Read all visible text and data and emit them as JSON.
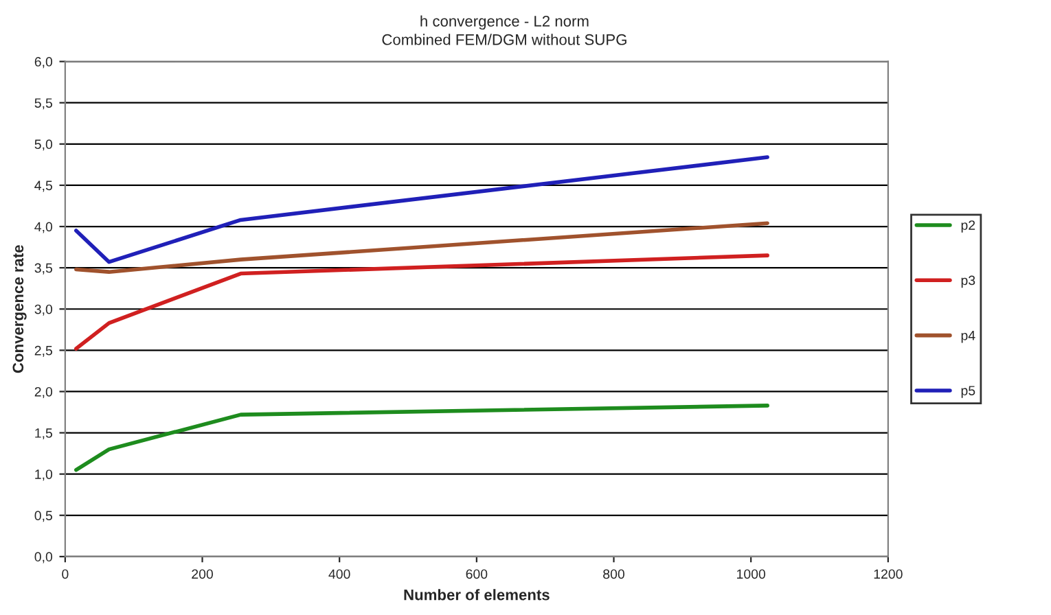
{
  "chart_data": {
    "type": "line",
    "title": "h convergence - L2 norm",
    "subtitle": "Combined FEM/DGM without SUPG",
    "xlabel": "Number of elements",
    "ylabel": "Convergence rate",
    "x": [
      16,
      64,
      256,
      1024
    ],
    "series": [
      {
        "name": "p2",
        "color": "#1e8c1e",
        "values": [
          1.05,
          1.3,
          1.72,
          1.83
        ]
      },
      {
        "name": "p3",
        "color": "#d02020",
        "values": [
          2.52,
          2.83,
          3.43,
          3.65
        ]
      },
      {
        "name": "p4",
        "color": "#a0522d",
        "values": [
          3.48,
          3.45,
          3.6,
          4.04
        ]
      },
      {
        "name": "p5",
        "color": "#2020b8",
        "values": [
          3.95,
          3.57,
          4.08,
          4.84
        ]
      }
    ],
    "xlim": [
      0,
      1200
    ],
    "xticks": [
      0,
      200,
      400,
      600,
      800,
      1000,
      1200
    ],
    "ylim": [
      0,
      6
    ],
    "yticks": [
      {
        "value": 0,
        "label": "0,0"
      },
      {
        "value": 0.5,
        "label": "0,5"
      },
      {
        "value": 1,
        "label": "1,0"
      },
      {
        "value": 1.5,
        "label": "1,5"
      },
      {
        "value": 2,
        "label": "2,0"
      },
      {
        "value": 2.5,
        "label": "2,5"
      },
      {
        "value": 3,
        "label": "3,0"
      },
      {
        "value": 3.5,
        "label": "3,5"
      },
      {
        "value": 4,
        "label": "4,0"
      },
      {
        "value": 4.5,
        "label": "4,5"
      },
      {
        "value": 5,
        "label": "5,0"
      },
      {
        "value": 5.5,
        "label": "5,5"
      },
      {
        "value": 6,
        "label": "6,0"
      }
    ],
    "grid": "y",
    "legend": "right",
    "marker": "none",
    "line_style": "solid"
  }
}
